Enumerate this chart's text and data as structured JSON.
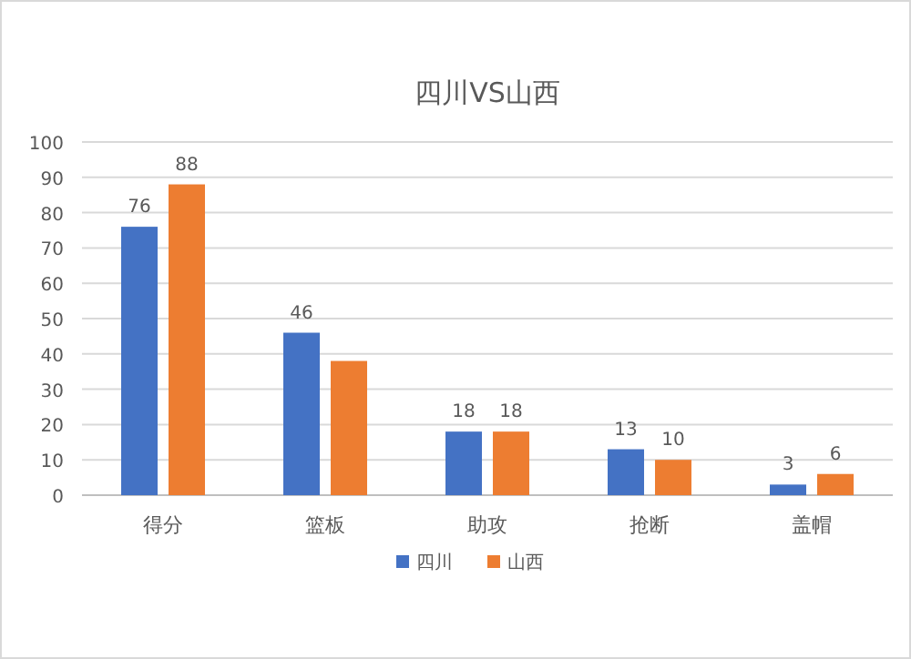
{
  "chart_data": {
    "type": "bar",
    "title": "四川VS山西",
    "categories": [
      "得分",
      "篮板",
      "助攻",
      "抢断",
      "盖帽"
    ],
    "series": [
      {
        "name": "四川",
        "color": "#4472c4",
        "values": [
          76,
          46,
          18,
          13,
          3
        ],
        "value_labels": [
          "76",
          "46",
          "18",
          "13",
          "3"
        ]
      },
      {
        "name": "山西",
        "color": "#ed7d31",
        "values": [
          88,
          38,
          18,
          10,
          6
        ],
        "value_labels": [
          "88",
          null,
          "18",
          "10",
          "6"
        ]
      }
    ],
    "ylim": [
      0,
      100
    ],
    "yticks": [
      0,
      10,
      20,
      30,
      40,
      50,
      60,
      70,
      80,
      90,
      100
    ],
    "grid": "y",
    "legend": "bottom"
  }
}
